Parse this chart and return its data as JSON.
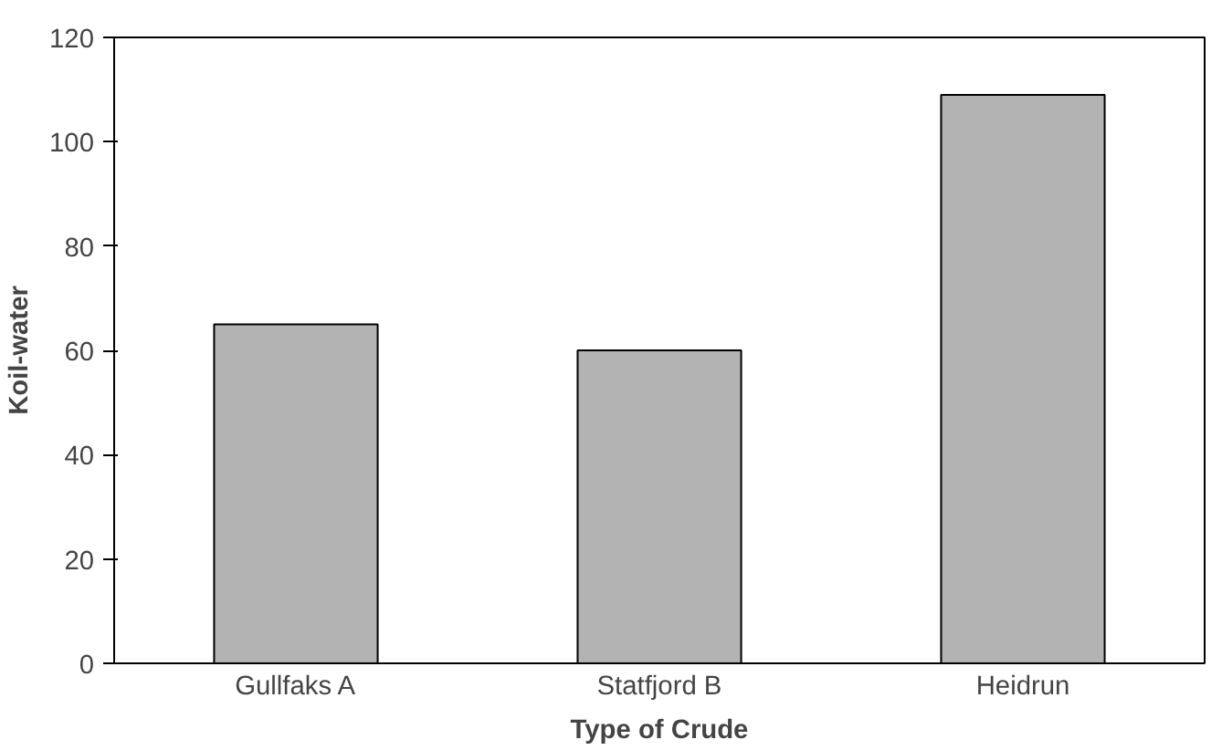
{
  "chart_data": {
    "type": "bar",
    "xlabel": "Type of Crude",
    "ylabel": "Koil-water",
    "categories": [
      "Gullfaks A",
      "Statfjord B",
      "Heidrun"
    ],
    "values": [
      65,
      60,
      109
    ],
    "color": "#b3b3b3",
    "ylim": [
      0,
      120
    ],
    "yticks": [
      0,
      20,
      40,
      60,
      80,
      100,
      120
    ],
    "grid": false
  }
}
